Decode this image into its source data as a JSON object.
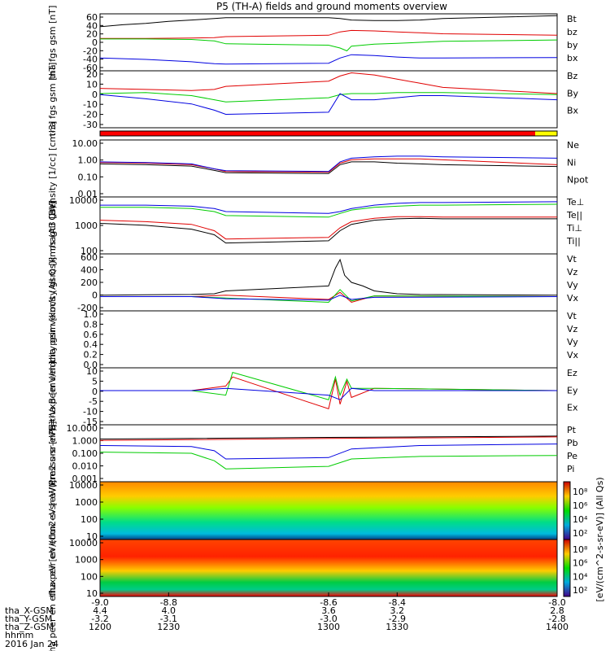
{
  "title": "P5 (TH-A) fields and ground moments overview",
  "date_label": "2016 Jan 24",
  "colorbar_label": "[eV/(cm^2-s-sr-eV)] (All Qs)",
  "chart_data": [
    {
      "type": "line",
      "ylabel": "tha fgs gsm [nT]",
      "ylim": [
        -60,
        60
      ],
      "yticks": [
        "60",
        "40",
        "20",
        "0",
        "-20",
        "-40",
        "-60"
      ],
      "series": [
        {
          "name": "Bt",
          "color": "#000000",
          "x": [
            1200,
            1210,
            1220,
            1230,
            1240,
            1250,
            1255,
            1300,
            1305,
            1310,
            1320,
            1330,
            1340,
            1350,
            1400
          ],
          "y": [
            33,
            37,
            40,
            44,
            47,
            50,
            52,
            52,
            50,
            47,
            46,
            46,
            47,
            50,
            56
          ]
        },
        {
          "name": "bz",
          "color": "#e00000",
          "x": [
            1200,
            1220,
            1240,
            1250,
            1255,
            1300,
            1305,
            1310,
            1320,
            1330,
            1340,
            1350,
            1400
          ],
          "y": [
            8,
            8,
            9,
            10,
            12,
            15,
            22,
            25,
            24,
            22,
            20,
            18,
            15
          ]
        },
        {
          "name": "by",
          "color": "#00cc00",
          "x": [
            1200,
            1220,
            1240,
            1250,
            1255,
            1300,
            1305,
            1308,
            1310,
            1320,
            1330,
            1340,
            1350,
            1400
          ],
          "y": [
            7,
            7,
            6,
            3,
            -3,
            -6,
            -12,
            -18,
            -8,
            -4,
            -2,
            0,
            2,
            5
          ]
        },
        {
          "name": "bx",
          "color": "#0000e0",
          "x": [
            1200,
            1220,
            1240,
            1250,
            1255,
            1300,
            1305,
            1310,
            1320,
            1330,
            1340,
            1350,
            1400
          ],
          "y": [
            -33,
            -36,
            -41,
            -45,
            -46,
            -44,
            -33,
            -26,
            -28,
            -31,
            -33,
            -33,
            -32
          ]
        }
      ]
    },
    {
      "type": "line",
      "ylabel": "tha fgs gsm [nT]",
      "ylim": [
        -35,
        20
      ],
      "yticks": [
        "20",
        "10",
        "0",
        "-10",
        "-20",
        "-30"
      ],
      "series": [
        {
          "name": "Bz",
          "color": "#e00000",
          "x": [
            1200,
            1220,
            1240,
            1250,
            1255,
            1300,
            1305,
            1310,
            1320,
            1330,
            1340,
            1350,
            1400
          ],
          "y": [
            3,
            2,
            1,
            2,
            5,
            10,
            15,
            18,
            16,
            12,
            8,
            4,
            -2
          ]
        },
        {
          "name": "By",
          "color": "#00cc00",
          "x": [
            1200,
            1220,
            1240,
            1250,
            1255,
            1300,
            1305,
            1310,
            1320,
            1330,
            1340,
            1350,
            1400
          ],
          "y": [
            -2,
            -1,
            -4,
            -8,
            -10,
            -6,
            -3,
            -2,
            -2,
            -1,
            -1,
            -1,
            -3
          ]
        },
        {
          "name": "Bx",
          "color": "#0000e0",
          "x": [
            1200,
            1220,
            1240,
            1250,
            1255,
            1300,
            1305,
            1310,
            1320,
            1330,
            1340,
            1350,
            1400
          ],
          "y": [
            -3,
            -7,
            -12,
            -18,
            -22,
            -20,
            -2,
            -8,
            -8,
            -6,
            -4,
            -4,
            -8
          ]
        }
      ]
    },
    {
      "type": "line",
      "ylabel": "Density [1/cc] [cm-3]",
      "yscale": "log",
      "ylim": [
        0.01,
        10
      ],
      "yticks": [
        "10.00",
        "1.00",
        "0.10",
        "0.01"
      ],
      "series": [
        {
          "name": "Ne",
          "color": "#e00000",
          "x": [
            1200,
            1220,
            1240,
            1250,
            1255,
            1300,
            1305,
            1310,
            1320,
            1330,
            1340,
            1350,
            1400
          ],
          "y": [
            0.65,
            0.6,
            0.5,
            0.3,
            0.22,
            0.2,
            0.6,
            0.9,
            1.0,
            1.0,
            1.0,
            0.9,
            0.5
          ]
        },
        {
          "name": "Ni",
          "color": "#000000",
          "x": [
            1200,
            1220,
            1240,
            1250,
            1255,
            1300,
            1305,
            1310,
            1320,
            1330,
            1340,
            1350,
            1400
          ],
          "y": [
            0.55,
            0.5,
            0.42,
            0.25,
            0.19,
            0.17,
            0.5,
            0.7,
            0.7,
            0.6,
            0.55,
            0.5,
            0.4
          ]
        },
        {
          "name": "Npot",
          "color": "#0000e0",
          "x": [
            1200,
            1220,
            1240,
            1250,
            1255,
            1300,
            1305,
            1310,
            1320,
            1330,
            1340,
            1350,
            1400
          ],
          "y": [
            0.7,
            0.65,
            0.55,
            0.3,
            0.24,
            0.22,
            0.7,
            1.1,
            1.3,
            1.4,
            1.4,
            1.3,
            1.1
          ]
        }
      ]
    },
    {
      "type": "line",
      "ylabel": "magt3 [eV]",
      "yscale": "log",
      "ylim": [
        100,
        12000
      ],
      "yticks": [
        "10000",
        "1000",
        "100"
      ],
      "series": [
        {
          "name": "Te⊥",
          "color": "#e00000",
          "x": [
            1200,
            1220,
            1240,
            1250,
            1255,
            1300,
            1305,
            1310,
            1320,
            1330,
            1340,
            1350,
            1400
          ],
          "y": [
            1700,
            1500,
            1200,
            700,
            350,
            400,
            900,
            1500,
            2000,
            2300,
            2300,
            2200,
            2200
          ]
        },
        {
          "name": "Te||",
          "color": "#000000",
          "x": [
            1200,
            1220,
            1240,
            1250,
            1255,
            1300,
            1305,
            1310,
            1320,
            1330,
            1340,
            1350,
            1400
          ],
          "y": [
            1300,
            1100,
            800,
            500,
            250,
            300,
            700,
            1200,
            1700,
            1900,
            2000,
            1900,
            1900
          ]
        },
        {
          "name": "Ti⊥",
          "color": "#0000e0",
          "x": [
            1200,
            1220,
            1240,
            1250,
            1255,
            1300,
            1305,
            1310,
            1320,
            1330,
            1340,
            1350,
            1400
          ],
          "y": [
            6000,
            6000,
            5500,
            4500,
            3500,
            3000,
            3500,
            4500,
            6000,
            7000,
            7500,
            7500,
            8000
          ]
        },
        {
          "name": "Ti||",
          "color": "#00cc00",
          "x": [
            1200,
            1220,
            1240,
            1250,
            1255,
            1300,
            1305,
            1310,
            1320,
            1330,
            1340,
            1350,
            1400
          ],
          "y": [
            5000,
            5000,
            4500,
            3500,
            2500,
            2200,
            3000,
            4000,
            5000,
            5500,
            6000,
            6000,
            6500
          ]
        }
      ]
    },
    {
      "type": "line",
      "ylabel": "tha peir velocity gsm [km/s (All Qs)]",
      "ylim": [
        -200,
        600
      ],
      "yticks": [
        "600",
        "400",
        "200",
        "0",
        "-200"
      ],
      "series": [
        {
          "name": "Vt",
          "color": "#000000",
          "x": [
            1200,
            1220,
            1240,
            1250,
            1255,
            1300,
            1303,
            1305,
            1307,
            1310,
            1315,
            1320,
            1330,
            1340,
            1400
          ],
          "y": [
            20,
            25,
            30,
            40,
            80,
            150,
            400,
            520,
            300,
            200,
            150,
            80,
            40,
            30,
            20
          ]
        },
        {
          "name": "Vz",
          "color": "#e00000",
          "x": [
            1200,
            1240,
            1255,
            1300,
            1305,
            1310,
            1320,
            1400
          ],
          "y": [
            0,
            0,
            20,
            -40,
            60,
            -80,
            10,
            0
          ]
        },
        {
          "name": "Vy",
          "color": "#00cc00",
          "x": [
            1200,
            1240,
            1255,
            1300,
            1305,
            1310,
            1320,
            1400
          ],
          "y": [
            0,
            0,
            -20,
            -80,
            100,
            -60,
            10,
            0
          ]
        },
        {
          "name": "Vx",
          "color": "#0000e0",
          "x": [
            1200,
            1240,
            1255,
            1300,
            1305,
            1310,
            1320,
            1400
          ],
          "y": [
            0,
            0,
            -30,
            -50,
            20,
            -40,
            -10,
            0
          ]
        }
      ]
    },
    {
      "type": "line",
      "ylabel": "tha peer velocity gsm [km/s (All Qs)]",
      "ylim": [
        0,
        1
      ],
      "yticks": [
        "1.0",
        "0.8",
        "0.6",
        "0.4",
        "0.2",
        "0.0"
      ],
      "series": [
        {
          "name": "Vt",
          "color": "#000000",
          "x": [],
          "y": []
        },
        {
          "name": "Vz",
          "color": "#e00000",
          "x": [],
          "y": []
        },
        {
          "name": "Vy",
          "color": "#00cc00",
          "x": [],
          "y": []
        },
        {
          "name": "Vx",
          "color": "#0000e0",
          "x": [],
          "y": []
        }
      ]
    },
    {
      "type": "line",
      "ylabel": "E=-VxB [mV/m]",
      "ylim": [
        -15,
        10
      ],
      "yticks": [
        "10",
        "5",
        "0",
        "-5",
        "-10",
        "-15"
      ],
      "series": [
        {
          "name": "Ez",
          "color": "#e00000",
          "x": [
            1200,
            1240,
            1255,
            1258,
            1300,
            1303,
            1305,
            1308,
            1310,
            1320,
            1400
          ],
          "y": [
            0,
            0,
            2,
            6,
            -8,
            5,
            -6,
            4,
            -3,
            1,
            0
          ]
        },
        {
          "name": "Ey",
          "color": "#00cc00",
          "x": [
            1200,
            1240,
            1255,
            1258,
            1300,
            1303,
            1305,
            1308,
            1310,
            1320,
            1400
          ],
          "y": [
            0,
            0,
            -2,
            8,
            -4,
            6,
            -2,
            5,
            1,
            1,
            0
          ]
        },
        {
          "name": "Ex",
          "color": "#0000e0",
          "x": [
            1200,
            1240,
            1255,
            1300,
            1305,
            1310,
            1320,
            1400
          ],
          "y": [
            0,
            0,
            1,
            -2,
            -4,
            1,
            0,
            0
          ]
        }
      ]
    },
    {
      "type": "line",
      "ylabel": "Pressure [nPa]",
      "yscale": "log",
      "ylim": [
        0.001,
        10
      ],
      "yticks": [
        "10.000",
        "1.000",
        "0.100",
        "0.010",
        "0.001"
      ],
      "series": [
        {
          "name": "Pt",
          "color": "#000000",
          "x": [
            1200,
            1240,
            1300,
            1340,
            1400
          ],
          "y": [
            1.0,
            1.1,
            1.3,
            1.4,
            1.6
          ]
        },
        {
          "name": "Pb",
          "color": "#e00000",
          "x": [
            1200,
            1240,
            1300,
            1340,
            1400
          ],
          "y": [
            0.8,
            0.9,
            1.1,
            1.2,
            1.4
          ]
        },
        {
          "name": "Pe",
          "color": "#00cc00",
          "x": [
            1200,
            1240,
            1250,
            1255,
            1300,
            1310,
            1340,
            1400
          ],
          "y": [
            0.12,
            0.1,
            0.03,
            0.008,
            0.012,
            0.04,
            0.06,
            0.07
          ]
        },
        {
          "name": "Pi",
          "color": "#0000e0",
          "x": [
            1200,
            1240,
            1250,
            1255,
            1300,
            1310,
            1340,
            1400
          ],
          "y": [
            0.35,
            0.3,
            0.15,
            0.04,
            0.05,
            0.2,
            0.35,
            0.45
          ]
        }
      ]
    },
    {
      "type": "heatmap",
      "ylabel": "tha peir en eflux eV [eV/(cm2-s-sr-eV)]",
      "yticks": [
        "10000",
        "1000",
        "100",
        "10"
      ],
      "colorbar_ticks": [
        "10⁸",
        "10⁶",
        "10⁴",
        "10²"
      ]
    },
    {
      "type": "heatmap",
      "ylabel": "tha peer en eflux eV [eV/(cm2-s-sr-eV)]",
      "yticks": [
        "10000",
        "1000",
        "100",
        "10"
      ],
      "colorbar_ticks": [
        "10⁸",
        "10⁶",
        "10⁴",
        "10²"
      ]
    }
  ],
  "xaxis": {
    "xlim": [
      1200,
      1400
    ],
    "ticks": [
      {
        "x": 1200,
        "top": "-9.0",
        "X": "4.4",
        "Y": "-3.2",
        "hhmm": "1200"
      },
      {
        "x": 1230,
        "top": "-8.8",
        "X": "4.0",
        "Y": "-3.1",
        "hhmm": "1230"
      },
      {
        "x": 1300,
        "top": "-8.6",
        "X": "3.6",
        "Y": "-3.0",
        "hhmm": "1300"
      },
      {
        "x": 1330,
        "top": "-8.4",
        "X": "3.2",
        "Y": "-2.9",
        "hhmm": "1330"
      },
      {
        "x": 1400,
        "top": "-8.0",
        "X": "2.8",
        "Y": "-2.8",
        "hhmm": "1400"
      }
    ],
    "row_labels": [
      "tha_X-GSM",
      "tha_Y-GSM",
      "tha_Z-GSM",
      "hhmm"
    ]
  }
}
